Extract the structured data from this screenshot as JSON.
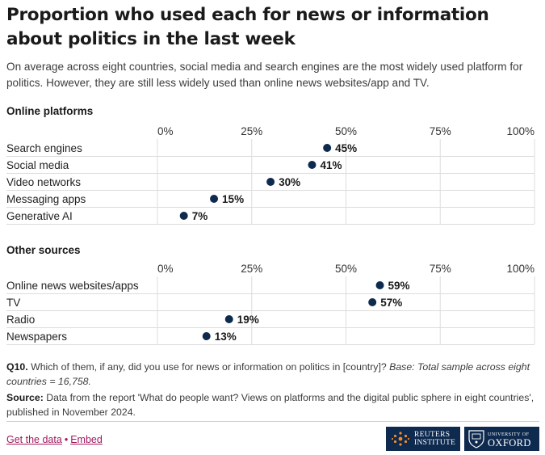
{
  "title": "Proportion who used each for news or information about politics in the last week",
  "subtitle": "On average across eight countries, social media and search engines are the most widely used platform for politics. However, they are still less widely used than online news websites/app and TV.",
  "chart_data": [
    {
      "type": "dot",
      "title": "Online platforms",
      "xlim": [
        0,
        100
      ],
      "ticks": [
        "0%",
        "25%",
        "50%",
        "75%",
        "100%"
      ],
      "categories": [
        "Search engines",
        "Social media",
        "Video networks",
        "Messaging apps",
        "Generative AI"
      ],
      "values": [
        45,
        41,
        30,
        15,
        7
      ],
      "labels": [
        "45%",
        "41%",
        "30%",
        "15%",
        "7%"
      ],
      "grid": true
    },
    {
      "type": "dot",
      "title": "Other sources",
      "xlim": [
        0,
        100
      ],
      "ticks": [
        "0%",
        "25%",
        "50%",
        "75%",
        "100%"
      ],
      "categories": [
        "Online news websites/apps",
        "TV",
        "Radio",
        "Newspapers"
      ],
      "values": [
        59,
        57,
        19,
        13
      ],
      "labels": [
        "59%",
        "57%",
        "19%",
        "13%"
      ],
      "grid": true
    }
  ],
  "note": {
    "q_label": "Q10.",
    "q_text": "Which of them, if any, did you use for news or information on politics in [country]?",
    "base_text": "Base: Total sample across eight countries = 16,758.",
    "source_label": "Source:",
    "source_text": "Data from the report 'What do people want? Views on platforms and the digital public sphere in eight countries', published in November 2024."
  },
  "links": {
    "get_data": "Get the data",
    "separator": "•",
    "embed": "Embed"
  },
  "logos": {
    "reuters_line1": "Reuters",
    "reuters_line2": "Institute",
    "oxford_line1": "University of",
    "oxford_line2": "Oxford"
  },
  "colors": {
    "dot": "#0e2a4f",
    "grid": "#dcdcdc",
    "link": "#a0185f",
    "logo_bg": "#0e2a4f"
  }
}
